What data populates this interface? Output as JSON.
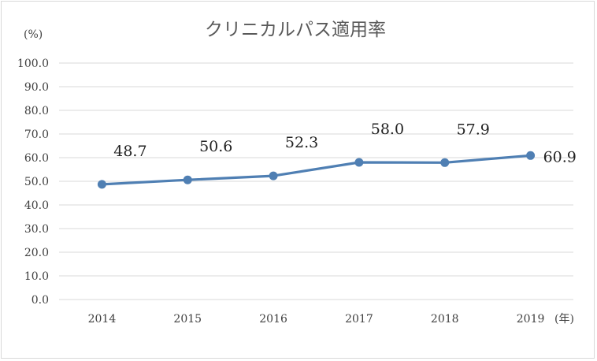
{
  "chart_data": {
    "type": "line",
    "title": "クリニカルパス適用率",
    "ylabel_unit": "(%)",
    "xlabel_unit": "(年)",
    "categories": [
      "2014",
      "2015",
      "2016",
      "2017",
      "2018",
      "2019"
    ],
    "series": [
      {
        "values": [
          48.7,
          50.6,
          52.3,
          58.0,
          57.9,
          60.9
        ]
      }
    ],
    "data_labels": [
      "48.7",
      "50.6",
      "52.3",
      "58.0",
      "57.9",
      "60.9"
    ],
    "ylim": [
      0,
      100
    ],
    "yticks": [
      "0.0",
      "10.0",
      "20.0",
      "30.0",
      "40.0",
      "50.0",
      "60.0",
      "70.0",
      "80.0",
      "90.0",
      "100.0"
    ],
    "grid": true,
    "colors": {
      "line": "#4f7fb3",
      "grid": "#d9d9d9"
    }
  }
}
